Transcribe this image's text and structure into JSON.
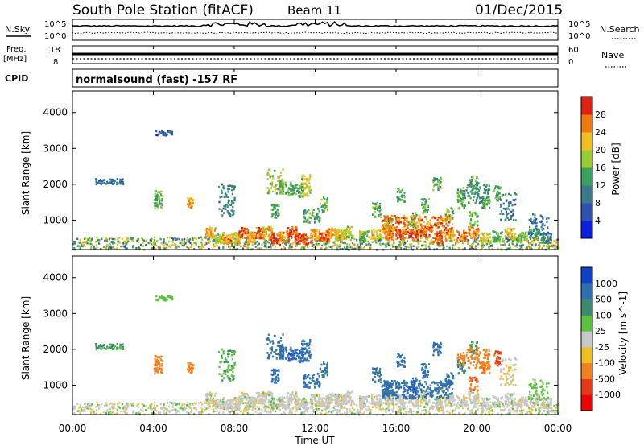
{
  "header": {
    "station": "South Pole Station (fitACF)",
    "beam": "Beam 11",
    "date": "01/Dec/2015"
  },
  "status_panels": {
    "nsky_label": "N.Sky",
    "nsky_ticks": [
      "10^5",
      "10^0"
    ],
    "nsearch_label": "N.Search",
    "nsearch_ticks": [
      "10^5",
      "10^0"
    ],
    "freq_label": "Freq.",
    "freq_unit": "[MHz]",
    "freq_ticks": [
      "18",
      "8"
    ],
    "nave_label": "Nave",
    "nave_ticks": [
      "60",
      "0"
    ],
    "cpid_label": "CPID",
    "cpid_text": "normalsound (fast) -157 RF"
  },
  "chart_data": [
    {
      "type": "heatmap",
      "title": "",
      "xlabel": "",
      "ylabel": "Slant Range [km]",
      "ylim": [
        180,
        4600
      ],
      "xlim": [
        0,
        24
      ],
      "yticks": [
        "1000",
        "2000",
        "3000",
        "4000"
      ],
      "colorbar": {
        "label": "Power [dB]",
        "ticks": [
          "4",
          "8",
          "12",
          "16",
          "20",
          "24",
          "28"
        ],
        "range": [
          0,
          30
        ],
        "colors": [
          "#0a20e0",
          "#3050b0",
          "#3b7a8a",
          "#3aa060",
          "#9acd32",
          "#f0c020",
          "#f07a10",
          "#e02010"
        ]
      },
      "series": [
        {
          "x": [
            6.8,
            7.2,
            7.6,
            8.0,
            8.4,
            8.8,
            9.2,
            9.6,
            10.0,
            10.4,
            10.8,
            11.2,
            11.6,
            12.0,
            12.4,
            12.8,
            13.2,
            13.6
          ],
          "values": [
            22,
            18,
            24,
            20,
            26,
            22,
            25,
            21,
            27,
            24,
            26,
            28,
            25,
            22,
            27,
            24,
            20,
            18
          ]
        },
        {
          "x": [
            14.4,
            15.0,
            15.6,
            16.2,
            16.8,
            17.4,
            18.0,
            18.6,
            19.2,
            19.8,
            20.4,
            21.0,
            21.6,
            22.2,
            22.8,
            23.4
          ],
          "values": [
            16,
            20,
            24,
            28,
            29,
            27,
            25,
            22,
            26,
            24,
            18,
            14,
            20,
            16,
            12,
            10
          ]
        }
      ]
    },
    {
      "type": "heatmap",
      "title": "",
      "xlabel": "Time UT",
      "ylabel": "Slant Range [km]",
      "ylim": [
        180,
        4600
      ],
      "xlim": [
        0,
        24
      ],
      "xticks": [
        "00:00",
        "04:00",
        "08:00",
        "12:00",
        "16:00",
        "20:00",
        "00:00"
      ],
      "yticks": [
        "1000",
        "2000",
        "3000",
        "4000"
      ],
      "colorbar": {
        "label": "Velocity [m s^-1]",
        "ticks": [
          "1000",
          "500",
          "100",
          "25",
          "-25",
          "-100",
          "-500",
          "-1000"
        ],
        "range": [
          -1000,
          1000
        ],
        "colors": [
          "#1040c8",
          "#2f6fb0",
          "#3d8a70",
          "#5ec040",
          "#c8c8c8",
          "#f0c020",
          "#f08020",
          "#e83818",
          "#f00000"
        ]
      },
      "series": [
        {
          "x": [
            10.0,
            10.4,
            10.8,
            11.2,
            11.6,
            12.0,
            12.4
          ],
          "values": [
            800,
            700,
            900,
            650,
            750,
            600,
            500
          ]
        },
        {
          "x": [
            15.0,
            15.6,
            16.2,
            16.8,
            17.4,
            18.0,
            18.6,
            19.2,
            19.8
          ],
          "values": [
            600,
            700,
            650,
            900,
            800,
            700,
            600,
            400,
            200
          ]
        },
        {
          "x": [
            19.2,
            19.8,
            20.4,
            21.0
          ],
          "values": [
            -300,
            -500,
            -400,
            -600
          ]
        }
      ]
    }
  ]
}
